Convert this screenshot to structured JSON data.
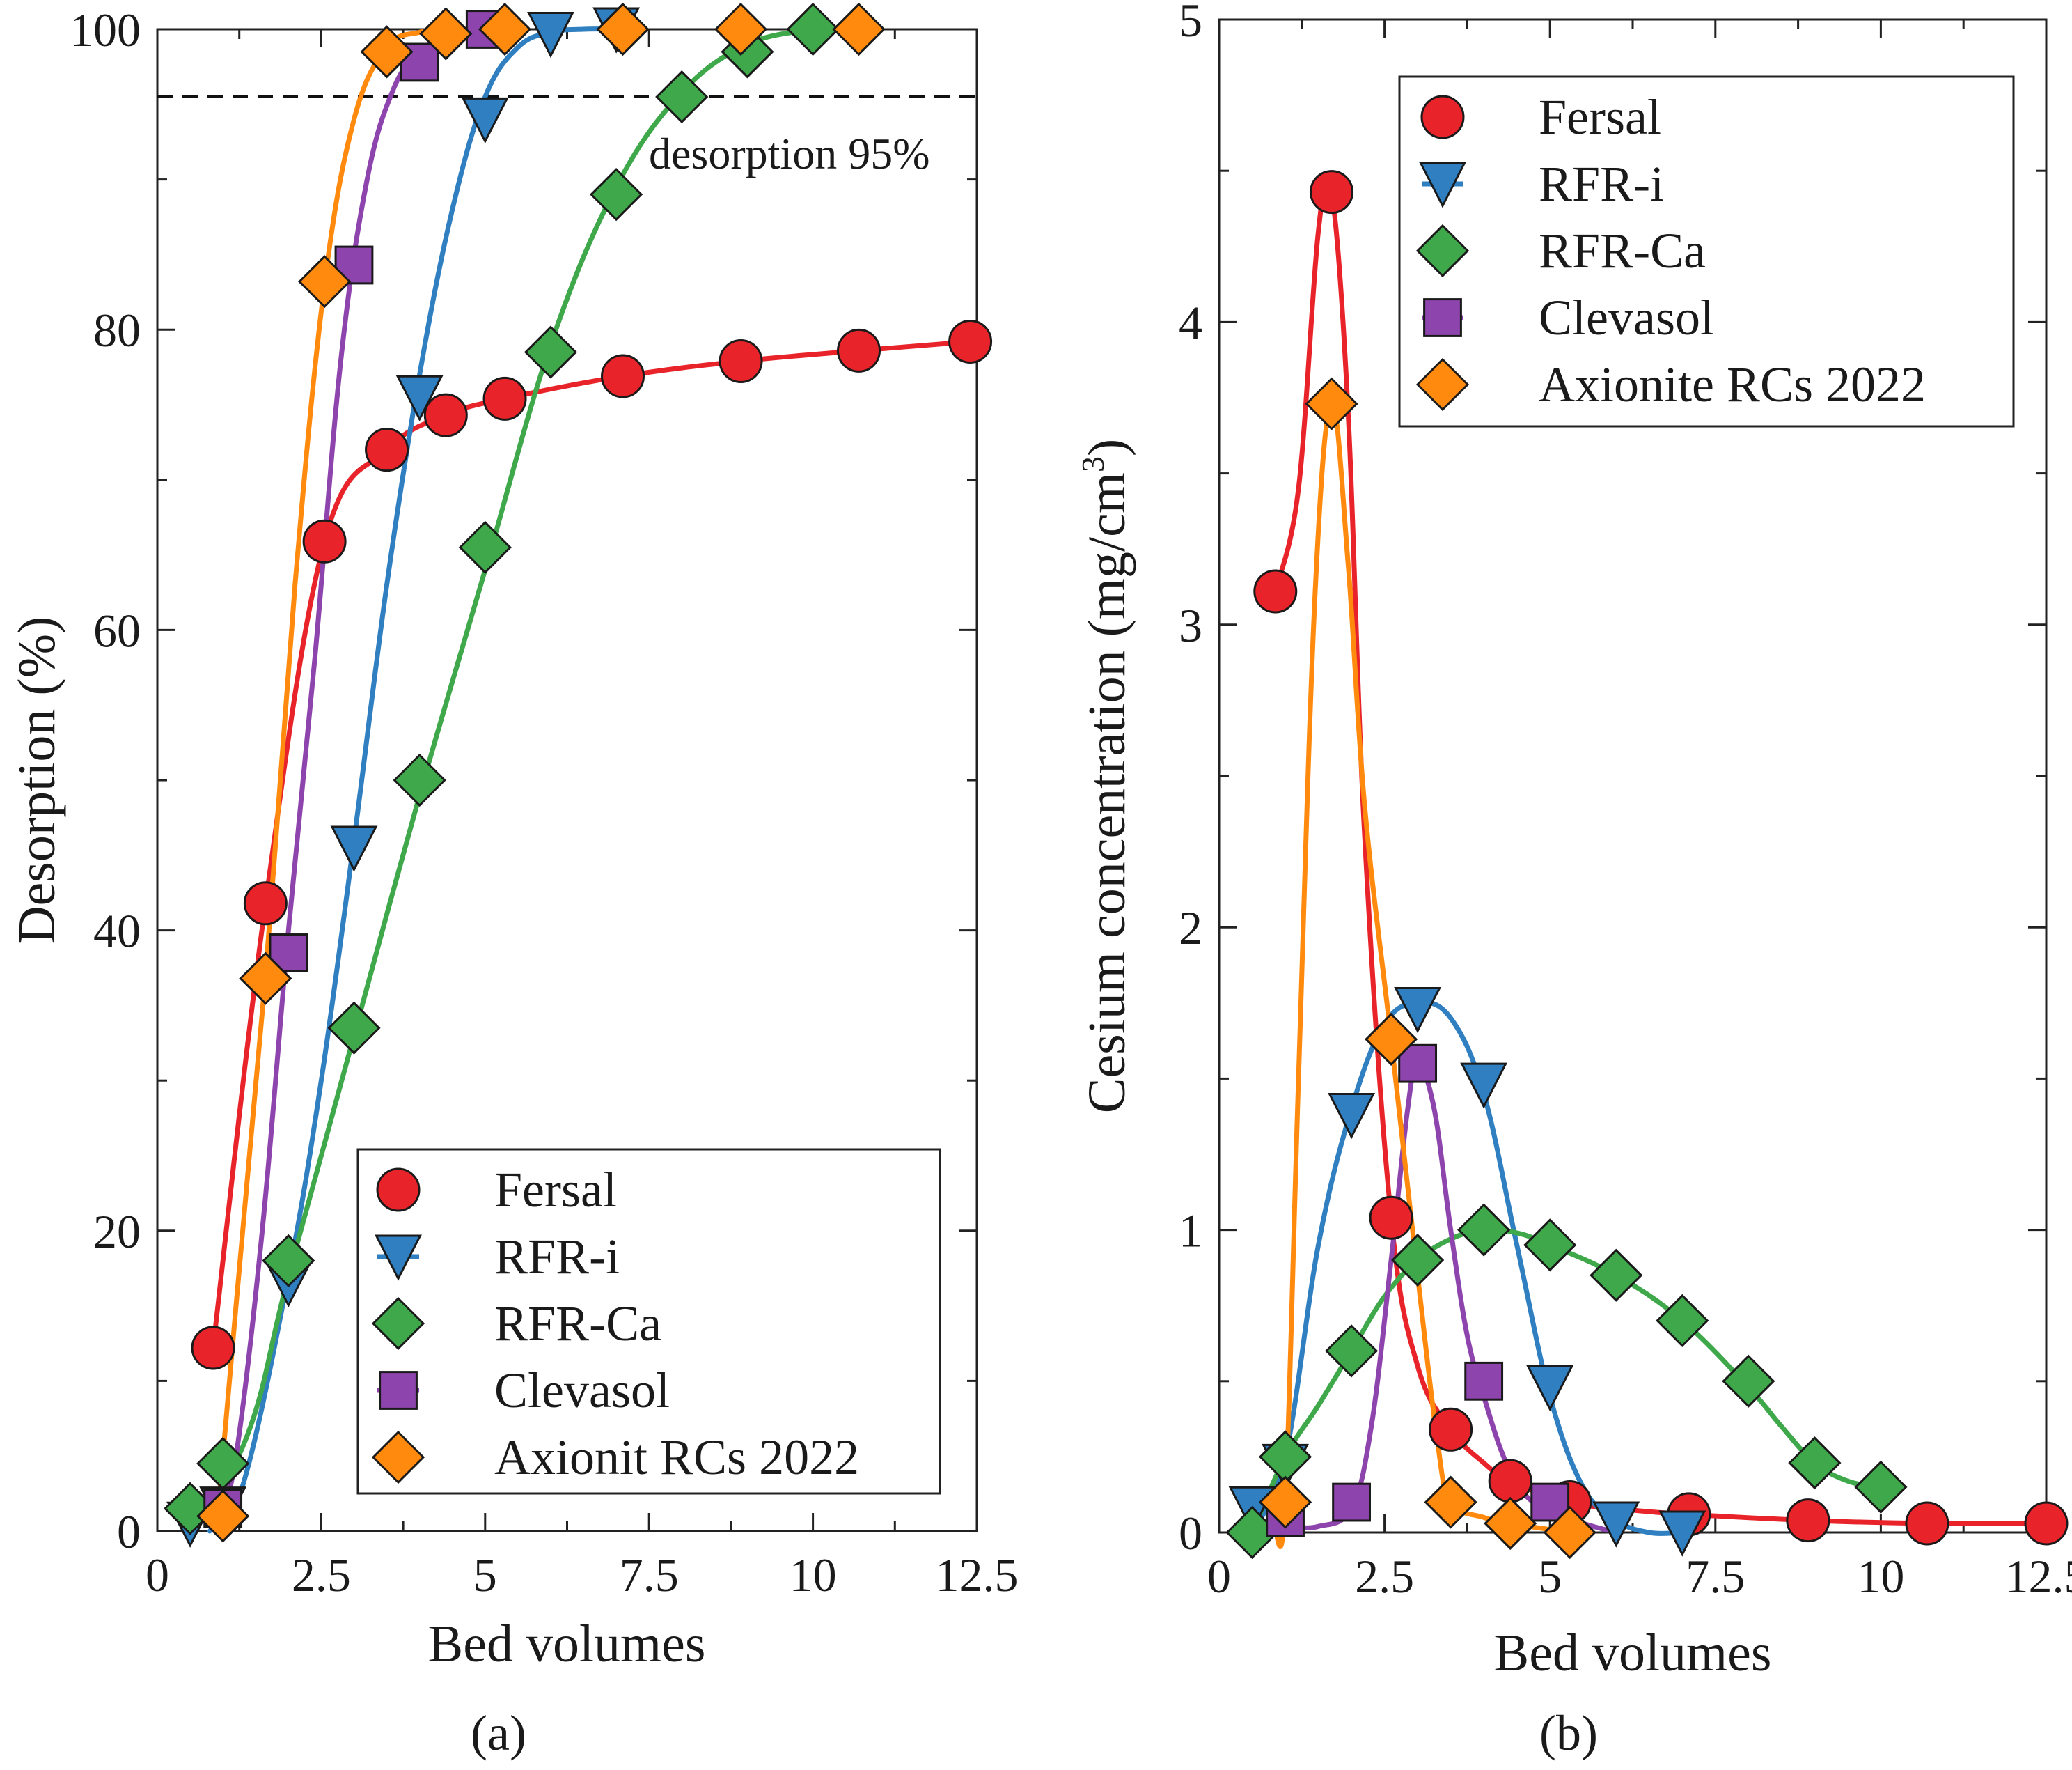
{
  "chart_data": [
    {
      "type": "line",
      "panel_label": "(a)",
      "xlabel": "Bed volumes",
      "ylabel": "Desorption (%)",
      "xlim": [
        0,
        12.5
      ],
      "ylim": [
        0,
        100
      ],
      "xticks": [
        "0",
        "2.5",
        "5",
        "7.5",
        "10",
        "12.5"
      ],
      "yticks": [
        "0",
        "20",
        "40",
        "60",
        "80",
        "100"
      ],
      "annotation": "desorption 95%",
      "reference_line": 95.5,
      "legend_position": "bottom-right",
      "series": [
        {
          "name": "Fersal",
          "color": "#e8242a",
          "marker": "circle",
          "x": [
            0.85,
            1.65,
            2.55,
            3.5,
            4.4,
            5.3,
            7.1,
            8.9,
            10.7,
            12.4
          ],
          "y": [
            12.2,
            41.8,
            65.9,
            72.0,
            74.3,
            75.4,
            76.9,
            77.9,
            78.6,
            79.2
          ]
        },
        {
          "name": "RFR-i",
          "color": "#2f7fc1",
          "marker": "triangle-down",
          "x": [
            0.5,
            1.0,
            2.0,
            3.0,
            4.0,
            5.0,
            6.0,
            7.0
          ],
          "y": [
            0.5,
            1.5,
            16.5,
            45.5,
            75.5,
            94.0,
            99.7,
            100
          ],
          "curve_x": [
            0.8,
            1.3,
            2.0,
            2.5,
            3.0,
            3.5,
            4.0,
            4.5,
            5.0,
            5.5,
            6.0,
            6.5,
            7.0
          ],
          "curve_y": [
            0,
            3,
            17,
            30,
            46,
            63,
            77,
            88,
            95.5,
            98.8,
            99.8,
            100,
            100
          ]
        },
        {
          "name": "RFR-Ca",
          "color": "#3ea84a",
          "marker": "diamond",
          "x": [
            0.5,
            1.0,
            2.0,
            3.0,
            4.0,
            5.0,
            6.0,
            7.0,
            8.0,
            9.0,
            10.0
          ],
          "y": [
            1.5,
            4.5,
            18.0,
            33.5,
            50.0,
            65.5,
            78.5,
            89.0,
            95.5,
            98.5,
            100
          ],
          "curve_x": [
            0.5,
            1.0,
            1.5,
            2.0,
            3.0,
            4.0,
            5.0,
            6.0,
            7.0,
            8.0,
            9.0,
            10.0
          ],
          "curve_y": [
            0,
            3,
            8,
            17,
            33,
            49,
            64,
            79,
            89.5,
            95.8,
            99,
            100
          ]
        },
        {
          "name": "Clevasol",
          "color": "#8e44ad",
          "marker": "square",
          "x": [
            1.0,
            2.0,
            3.0,
            4.0,
            5.0
          ],
          "y": [
            1.5,
            38.5,
            84.3,
            97.8,
            100
          ],
          "curve_x": [
            0.9,
            1.2,
            1.6,
            2.0,
            2.4,
            2.8,
            3.2,
            3.6,
            4.0,
            4.5,
            5.0
          ],
          "curve_y": [
            0,
            5,
            20,
            40,
            58,
            78,
            90,
            96,
            98.5,
            99.7,
            100
          ]
        },
        {
          "name": "Axionit RCs 2022",
          "color": "#ff8a0d",
          "marker": "diamond",
          "x": [
            1.0,
            1.65,
            2.55,
            3.5,
            4.4,
            5.3,
            7.1,
            8.9,
            10.7
          ],
          "y": [
            1.0,
            36.8,
            83.2,
            98.5,
            99.7,
            100,
            100,
            100,
            100
          ],
          "curve_x": [
            0.9,
            1.2,
            1.65,
            2.1,
            2.55,
            3.0,
            3.5,
            4.0,
            4.5
          ],
          "curve_y": [
            0,
            15,
            37,
            63,
            83,
            94,
            98.8,
            99.8,
            100
          ]
        }
      ],
      "legend": [
        "Fersal",
        "RFR-i",
        "RFR-Ca",
        "Clevasol",
        "Axionit RCs 2022"
      ]
    },
    {
      "type": "line",
      "panel_label": "(b)",
      "xlabel": "Bed volumes",
      "ylabel": "Cesium concentration (mg/cm",
      "ylabel_sup": "3",
      "ylabel_end": ")",
      "xlim": [
        0,
        12.5
      ],
      "ylim": [
        0,
        5
      ],
      "xticks": [
        "0",
        "2.5",
        "5",
        "7.5",
        "10",
        "12.5"
      ],
      "yticks": [
        "0",
        "1",
        "2",
        "3",
        "4",
        "5"
      ],
      "legend_position": "top-right",
      "series": [
        {
          "name": "Fersal",
          "color": "#e8242a",
          "marker": "circle",
          "x": [
            0.85,
            1.7,
            2.6,
            3.5,
            4.4,
            5.3,
            7.1,
            8.9,
            10.7,
            12.5
          ],
          "y": [
            3.11,
            4.43,
            1.04,
            0.34,
            0.17,
            0.1,
            0.06,
            0.04,
            0.03,
            0.03
          ],
          "curve_x": [
            0.85,
            1.2,
            1.5,
            1.7,
            1.95,
            2.2,
            2.6,
            3.0,
            3.5,
            4.0,
            4.4,
            5.3,
            6.2,
            7.1,
            8.9,
            10.7,
            12.5
          ],
          "curve_y": [
            3.11,
            3.45,
            4.3,
            4.43,
            3.7,
            2.3,
            1.04,
            0.55,
            0.34,
            0.23,
            0.17,
            0.1,
            0.075,
            0.06,
            0.04,
            0.03,
            0.03
          ]
        },
        {
          "name": "RFR-i",
          "color": "#2f7fc1",
          "marker": "triangle-down",
          "x": [
            0.5,
            1.0,
            2.0,
            3.0,
            4.0,
            5.0,
            6.0,
            7.0
          ],
          "y": [
            0.08,
            0.22,
            1.38,
            1.73,
            1.48,
            0.48,
            0.03,
            0.0
          ],
          "curve_x": [
            0.5,
            1.0,
            1.5,
            2.0,
            2.5,
            3.0,
            3.5,
            4.0,
            4.5,
            5.0,
            5.5,
            6.0,
            6.5,
            7.0
          ],
          "curve_y": [
            0.0,
            0.25,
            0.95,
            1.4,
            1.68,
            1.75,
            1.7,
            1.45,
            0.95,
            0.45,
            0.15,
            0.04,
            0.0,
            0.0
          ]
        },
        {
          "name": "RFR-Ca",
          "color": "#3ea84a",
          "marker": "diamond",
          "x": [
            0.5,
            1.0,
            2.0,
            3.0,
            4.0,
            5.0,
            6.0,
            7.0,
            8.0,
            9.0,
            10.0
          ],
          "y": [
            0.0,
            0.25,
            0.6,
            0.9,
            1.0,
            0.95,
            0.85,
            0.7,
            0.5,
            0.23,
            0.15
          ],
          "curve_x": [
            0.5,
            1.0,
            1.5,
            2.0,
            2.5,
            3.0,
            3.5,
            4.0,
            4.5,
            5.0,
            6.0,
            7.0,
            8.0,
            8.5,
            9.0,
            9.5,
            10.0
          ],
          "curve_y": [
            0.0,
            0.25,
            0.42,
            0.6,
            0.78,
            0.9,
            0.97,
            1.0,
            0.99,
            0.95,
            0.85,
            0.7,
            0.48,
            0.35,
            0.23,
            0.17,
            0.15
          ]
        },
        {
          "name": "Clevasol",
          "color": "#8e44ad",
          "marker": "square",
          "x": [
            1.0,
            2.0,
            3.0,
            4.0,
            5.0
          ],
          "y": [
            0.05,
            0.1,
            1.55,
            0.5,
            0.1
          ],
          "curve_x": [
            1.0,
            1.5,
            2.0,
            2.3,
            2.6,
            2.85,
            3.0,
            3.25,
            3.5,
            3.75,
            4.0,
            4.3,
            4.6,
            5.0,
            5.5,
            6.0
          ],
          "curve_y": [
            0.02,
            0.02,
            0.08,
            0.35,
            0.9,
            1.4,
            1.55,
            1.4,
            1.0,
            0.65,
            0.45,
            0.25,
            0.13,
            0.07,
            0.03,
            0.0
          ]
        },
        {
          "name": "Axionite RCs 2022",
          "color": "#ff8a0d",
          "marker": "diamond",
          "x": [
            1.0,
            1.7,
            2.6,
            3.5,
            4.4,
            5.3
          ],
          "y": [
            0.1,
            3.73,
            1.63,
            0.1,
            0.03,
            0.0
          ],
          "curve_x": [
            0.85,
            1.0,
            1.2,
            1.45,
            1.7,
            1.95,
            2.2,
            2.6,
            3.0,
            3.3,
            3.5,
            4.0,
            4.4,
            5.3
          ],
          "curve_y": [
            0.0,
            0.1,
            1.5,
            3.1,
            3.73,
            3.2,
            2.4,
            1.63,
            0.85,
            0.3,
            0.1,
            0.05,
            0.03,
            0.0
          ]
        }
      ],
      "legend": [
        "Fersal",
        "RFR-i",
        "RFR-Ca",
        "Clevasol",
        "Axionite RCs 2022"
      ]
    }
  ]
}
